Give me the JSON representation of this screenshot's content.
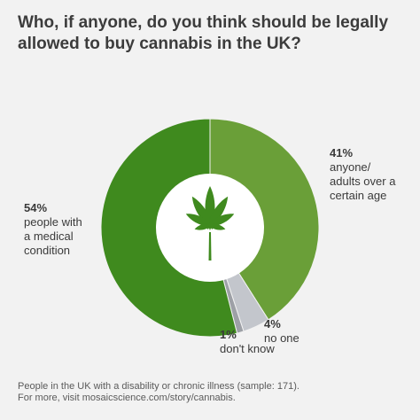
{
  "title": "Who, if anyone, do you think should be legally allowed to buy cannabis in the UK?",
  "chart_data": {
    "type": "pie",
    "variant": "donut",
    "title": "Who, if anyone, do you think should be legally allowed to buy cannabis in the UK?",
    "slices": [
      {
        "pct_label": "41%",
        "label": "anyone/\nadults over a\ncertain age",
        "value": 41,
        "color": "#6a9f38"
      },
      {
        "pct_label": "4%",
        "label": "no one",
        "value": 4,
        "color": "#c3c6cc"
      },
      {
        "pct_label": "1%",
        "label": "don't know",
        "value": 1,
        "color": "#9da0a6"
      },
      {
        "pct_label": "54%",
        "label": "people with\na medical\ncondition",
        "value": 54,
        "color": "#3f8a1e"
      }
    ],
    "center_icon": "cannabis-leaf-icon",
    "center_icon_color": "#3f8a1e"
  },
  "footer": {
    "line1": "People in the UK with a disability or chronic illness (sample: 171).",
    "line2": "For more, visit mosaicscience.com/story/cannabis."
  }
}
